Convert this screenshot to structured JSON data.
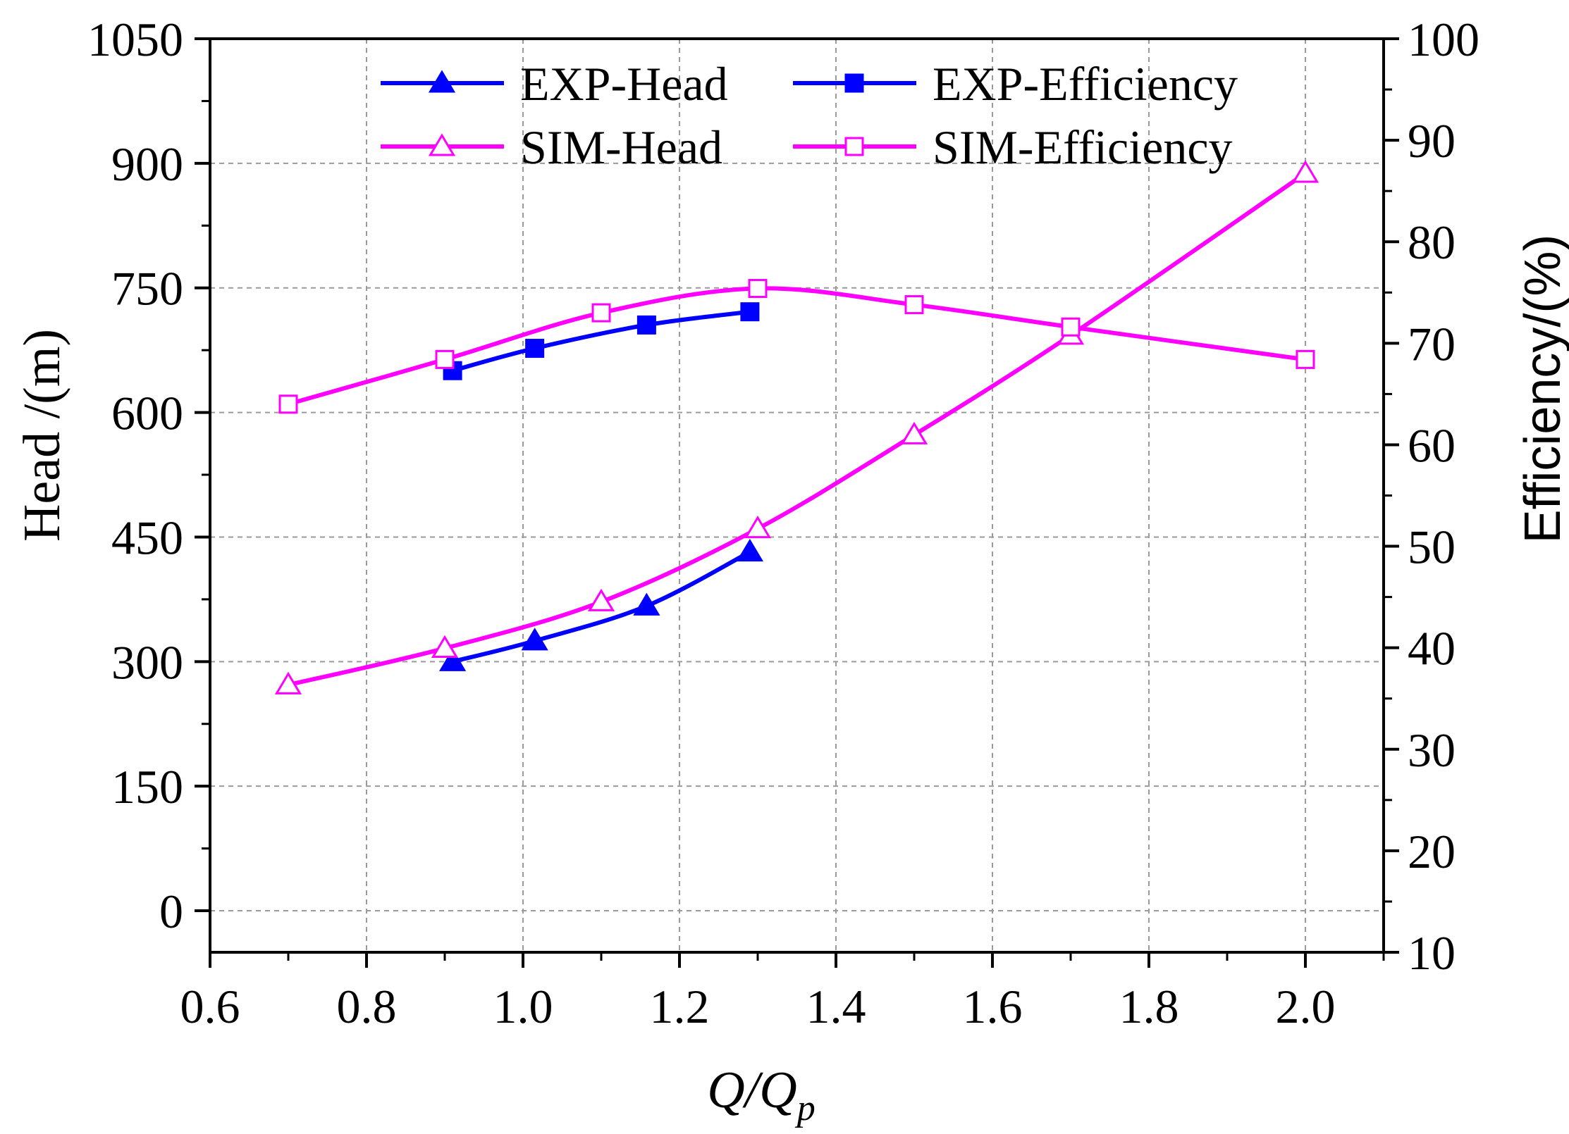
{
  "chart_data": {
    "type": "line",
    "title": "",
    "xlabel": "Q/Q",
    "xlabel_subscript": "p",
    "ylabel": "Head /(m)",
    "y2label": "Efficiency/(%)",
    "xlim": [
      0.6,
      2.1
    ],
    "ylim": [
      -50,
      1050
    ],
    "y2lim": [
      10,
      100
    ],
    "grid": true,
    "legend_position": "top",
    "x_ticks": [
      "0.6",
      "0.8",
      "1.0",
      "1.2",
      "1.4",
      "1.6",
      "1.8",
      "2.0"
    ],
    "x_tick_values": [
      0.6,
      0.8,
      1.0,
      1.2,
      1.4,
      1.6,
      1.8,
      2.0
    ],
    "y_ticks": [
      "0",
      "150",
      "300",
      "450",
      "600",
      "750",
      "900",
      "1050"
    ],
    "y_tick_values": [
      0,
      150,
      300,
      450,
      600,
      750,
      900,
      1050
    ],
    "y2_ticks": [
      "10",
      "20",
      "30",
      "40",
      "50",
      "60",
      "70",
      "80",
      "90",
      "100"
    ],
    "y2_tick_values": [
      10,
      20,
      30,
      40,
      50,
      60,
      70,
      80,
      90,
      100
    ],
    "series": [
      {
        "name": "EXP-Head",
        "axis": "left",
        "color": "#0000ff",
        "marker": "triangle-filled",
        "x": [
          0.91,
          1.015,
          1.158,
          1.29
        ],
        "y": [
          300,
          325,
          367,
          432
        ]
      },
      {
        "name": "EXP-Efficiency",
        "axis": "right",
        "color": "#0000ff",
        "marker": "square-filled",
        "x": [
          0.91,
          1.015,
          1.158,
          1.29
        ],
        "y": [
          67.3,
          69.5,
          71.8,
          73.1
        ]
      },
      {
        "name": "SIM-Head",
        "axis": "left",
        "color": "#ff00ff",
        "marker": "triangle-open",
        "x": [
          0.7,
          0.9,
          1.1,
          1.3,
          1.5,
          1.7,
          2.0
        ],
        "y": [
          272,
          316,
          372,
          460,
          573,
          693,
          888
        ]
      },
      {
        "name": "SIM-Efficiency",
        "axis": "right",
        "color": "#ff00ff",
        "marker": "square-open",
        "x": [
          0.7,
          0.9,
          1.1,
          1.3,
          1.5,
          1.7,
          2.0
        ],
        "y": [
          64.0,
          68.4,
          73.0,
          75.4,
          73.8,
          71.6,
          68.4
        ]
      }
    ]
  }
}
